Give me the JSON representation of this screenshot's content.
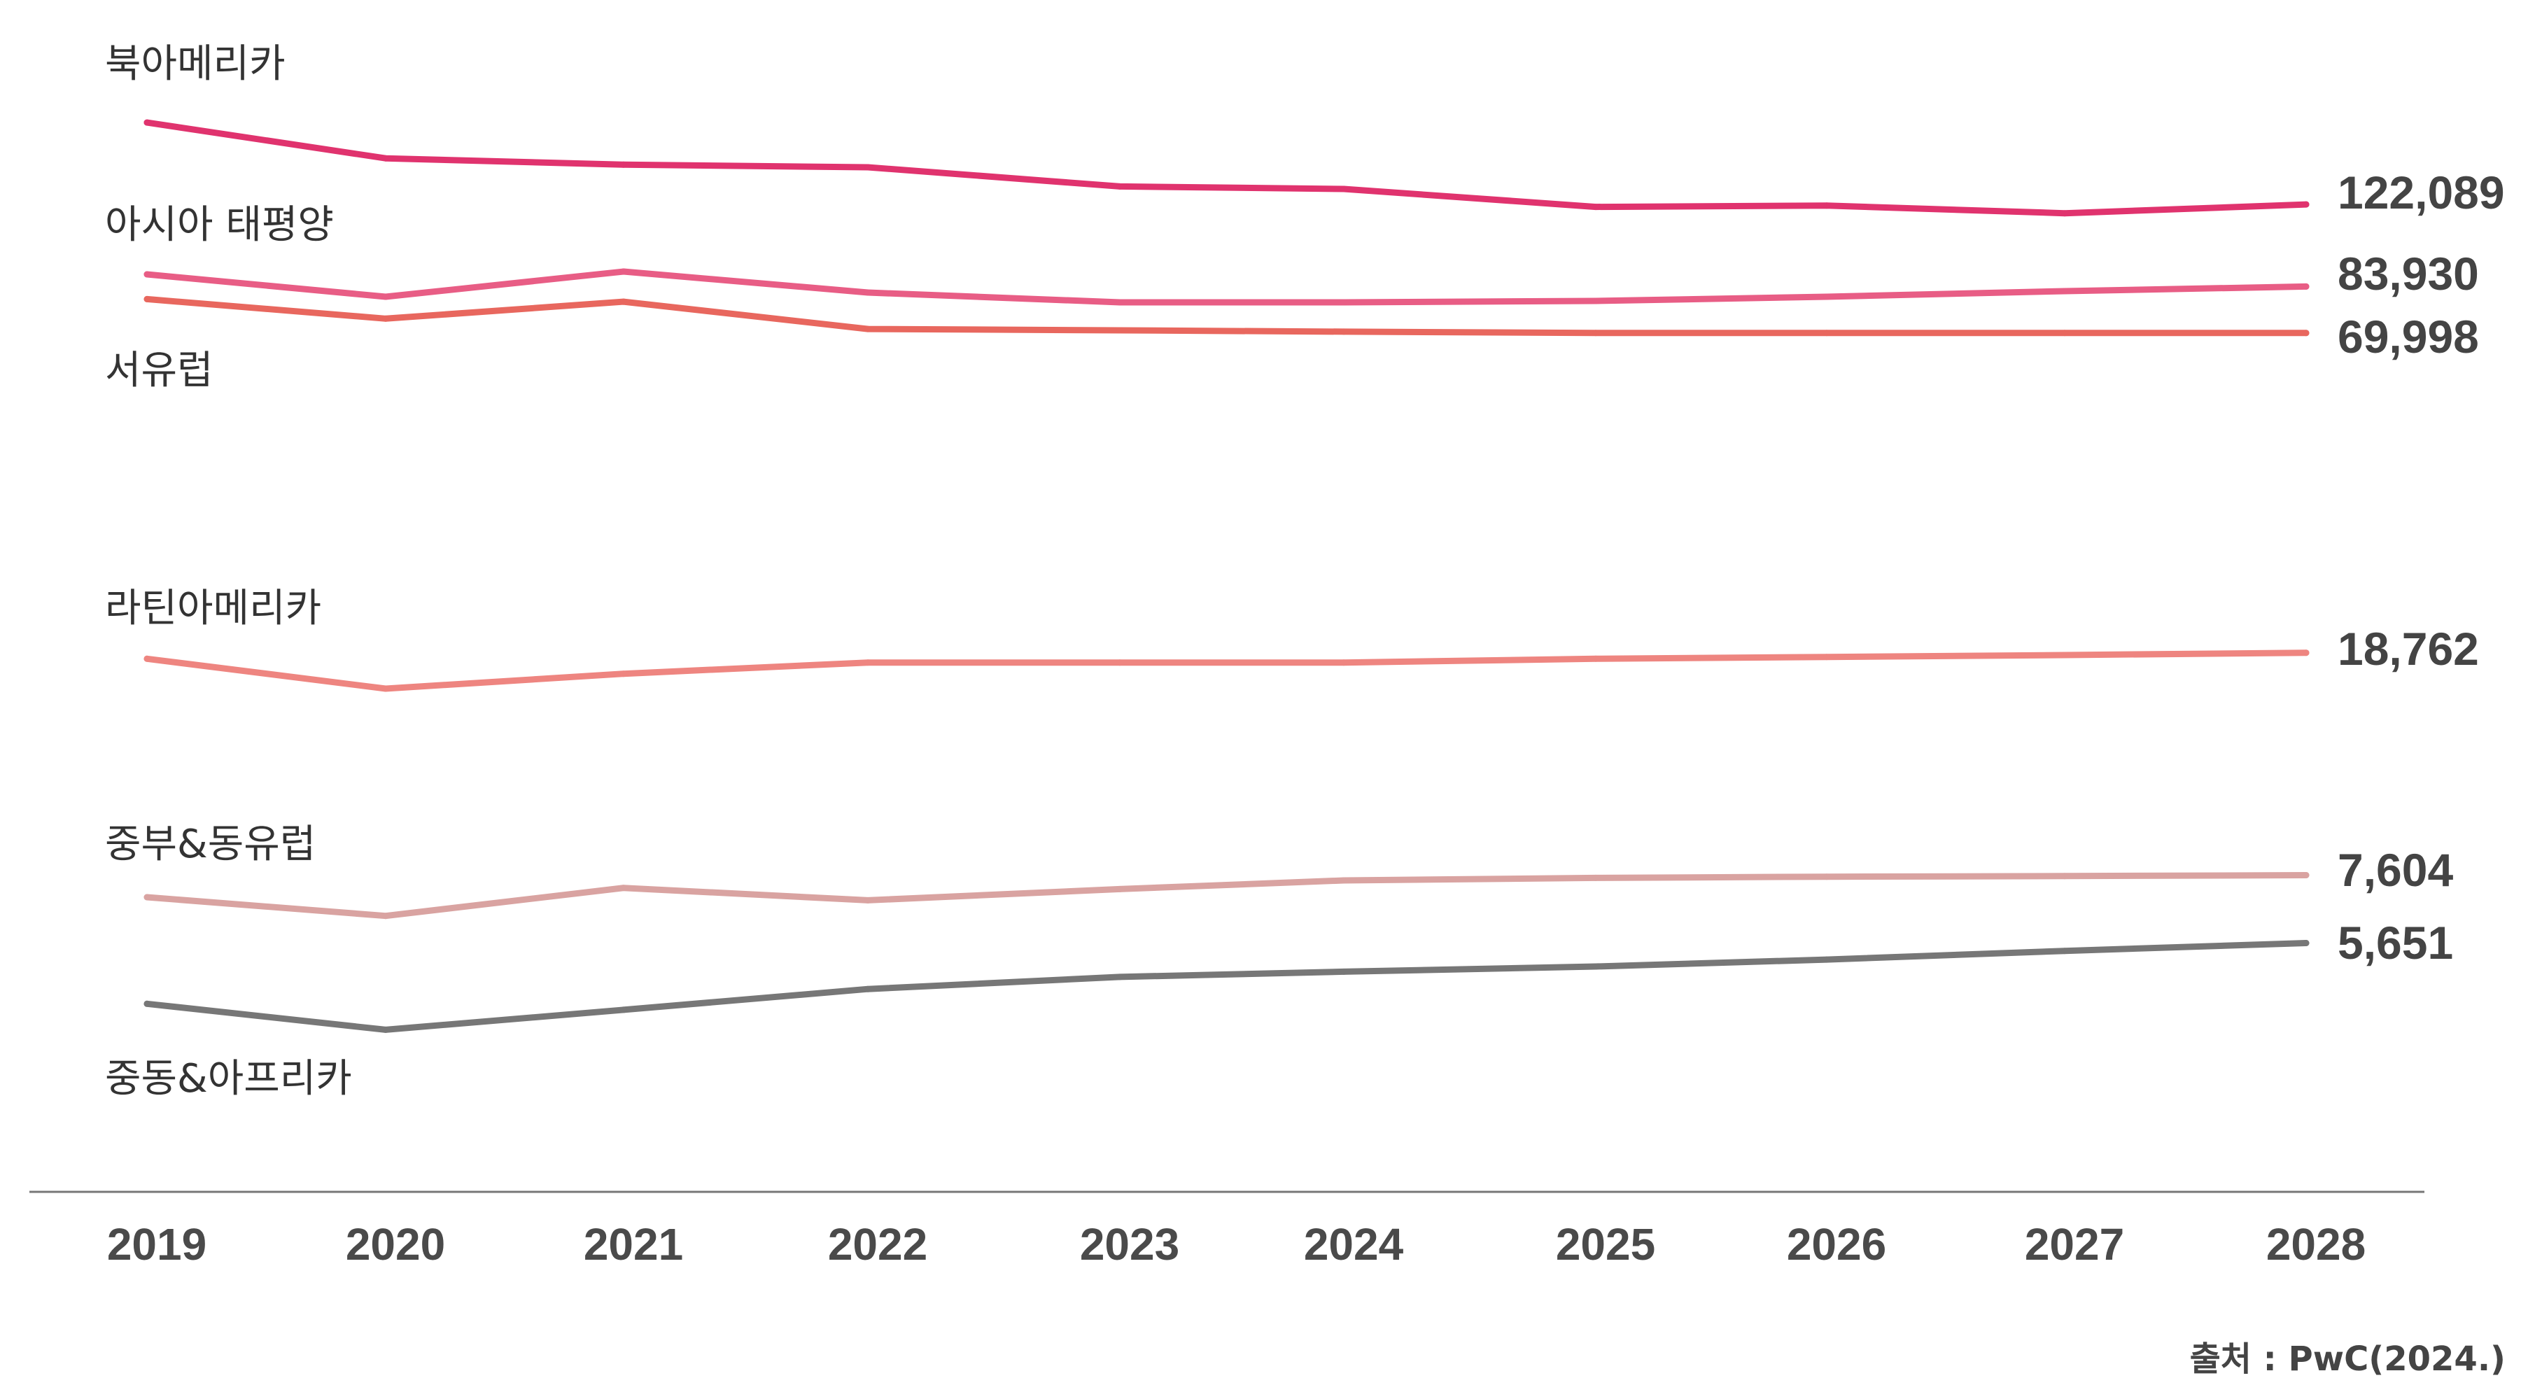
{
  "chart_data": {
    "type": "line",
    "title": "",
    "xlabel": "",
    "ylabel": "",
    "grid": false,
    "legend": "inline-labels",
    "x": [
      "2019",
      "2020",
      "2021",
      "2022",
      "2023",
      "2024",
      "2025",
      "2026",
      "2027",
      "2028"
    ],
    "series": [
      {
        "name": "북아메리카",
        "end_label": "122,089",
        "color": "#e0336e",
        "values": [
          128500,
          125700,
          125200,
          125000,
          123500,
          123300,
          121900,
          122000,
          121400,
          122089
        ]
      },
      {
        "name": "아시아 태평양",
        "end_label": "83,930",
        "color": "#e85d85",
        "values": [
          84800,
          83200,
          85000,
          83500,
          82800,
          82800,
          82900,
          83200,
          83600,
          83930
        ]
      },
      {
        "name": "서유럽",
        "end_label": "69,998",
        "color": "#e8675e",
        "values": [
          72600,
          71100,
          72400,
          70300,
          70200,
          70100,
          70000,
          70000,
          70000,
          69998
        ]
      },
      {
        "name": "라틴아메리카",
        "end_label": "18,762",
        "color": "#ee8580",
        "values": [
          18600,
          17800,
          18200,
          18500,
          18500,
          18500,
          18600,
          18650,
          18700,
          18762
        ]
      },
      {
        "name": "중부&동유럽",
        "end_label": "7,604",
        "color": "#d9a3a1",
        "values": [
          7250,
          6950,
          7400,
          7200,
          7380,
          7520,
          7560,
          7580,
          7590,
          7604
        ]
      },
      {
        "name": "중동&아프리카",
        "end_label": "5,651",
        "color": "#777777",
        "values": [
          4950,
          4650,
          4880,
          5120,
          5260,
          5320,
          5380,
          5460,
          5560,
          5651
        ]
      }
    ]
  },
  "source": "출처 : PwC(2024.)"
}
